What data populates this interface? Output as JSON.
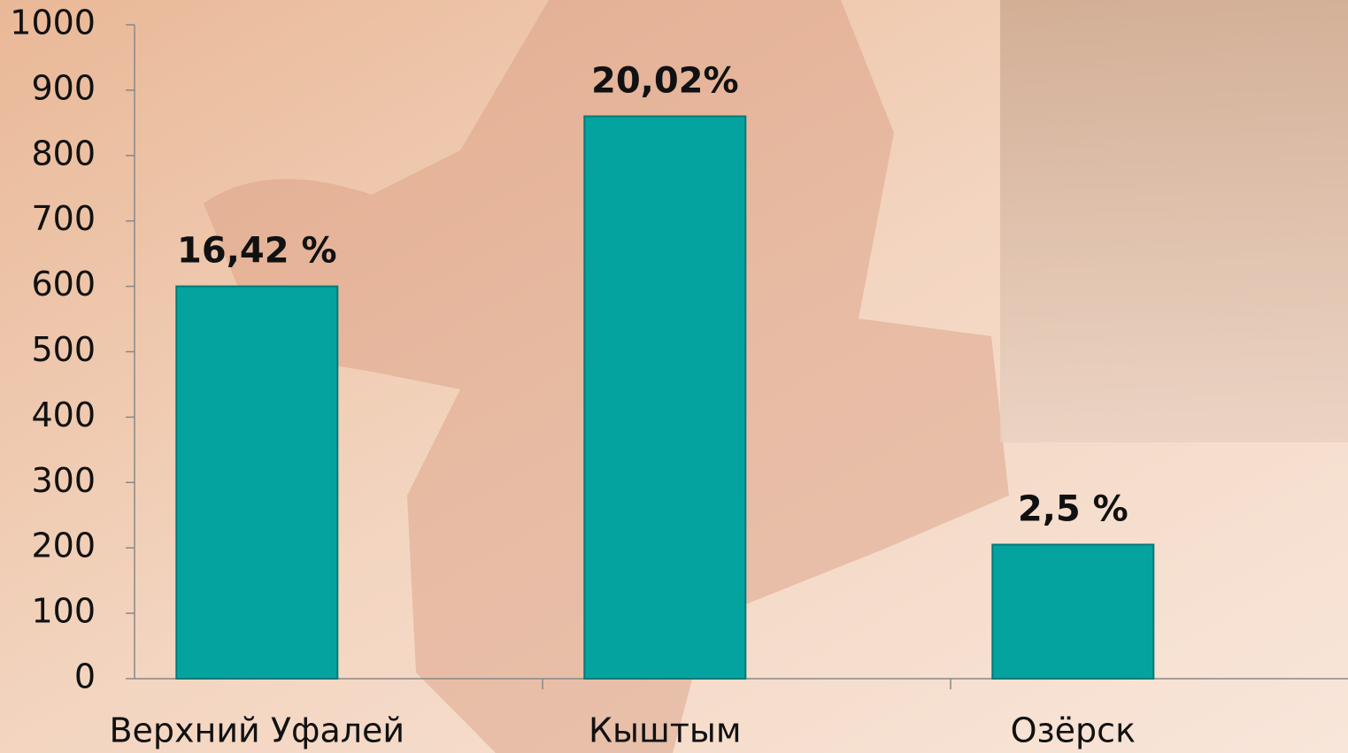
{
  "chart_data": {
    "type": "bar",
    "categories": [
      "Верхний Уфалей",
      "Кыштым",
      "Озёрск"
    ],
    "values": [
      600,
      860,
      205
    ],
    "annotations": [
      "16,42 %",
      "20,02%",
      "2,5 %"
    ],
    "color": "#05a3a0",
    "ylim": [
      0,
      1000
    ],
    "yticks": [
      0,
      100,
      200,
      300,
      400,
      500,
      600,
      700,
      800,
      900,
      1000
    ],
    "grid": false
  }
}
